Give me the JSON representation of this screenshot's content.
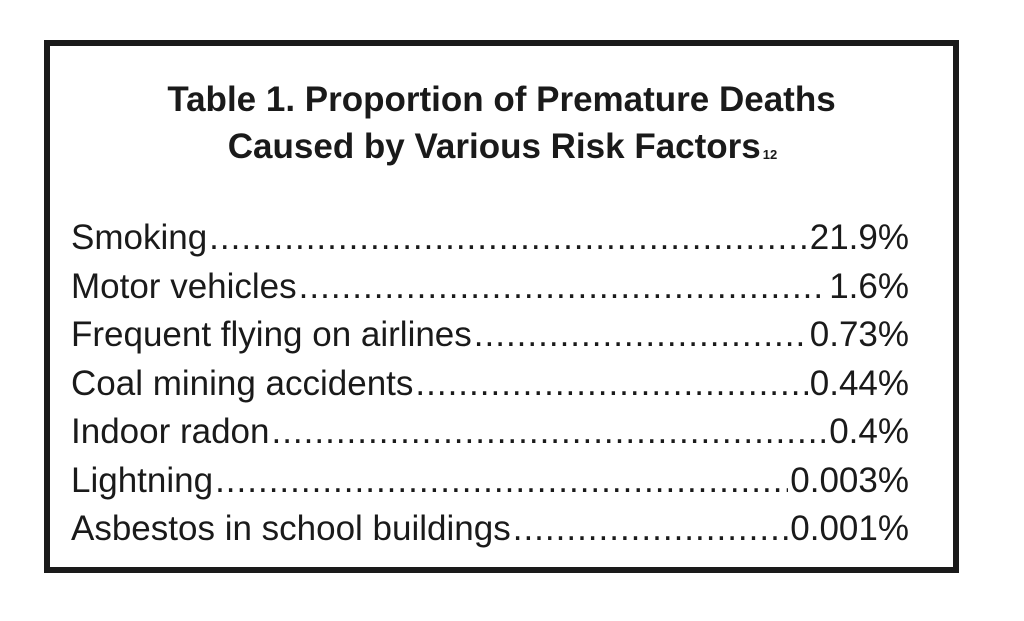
{
  "table": {
    "title_line1": "Table 1. Proportion of Premature Deaths",
    "title_line2": "Caused by Various Risk Factors",
    "title_footnote": "12",
    "rows": [
      {
        "label": "Smoking",
        "value": "21.9%"
      },
      {
        "label": "Motor vehicles",
        "value": "1.6%"
      },
      {
        "label": "Frequent flying on airlines",
        "value": "0.73%"
      },
      {
        "label": "Coal mining accidents",
        "value": "0.44%"
      },
      {
        "label": "Indoor radon",
        "value": "0.4%"
      },
      {
        "label": "Lightning",
        "value": "0.003%"
      },
      {
        "label": "Asbestos in school buildings",
        "value": "0.001%"
      }
    ]
  }
}
